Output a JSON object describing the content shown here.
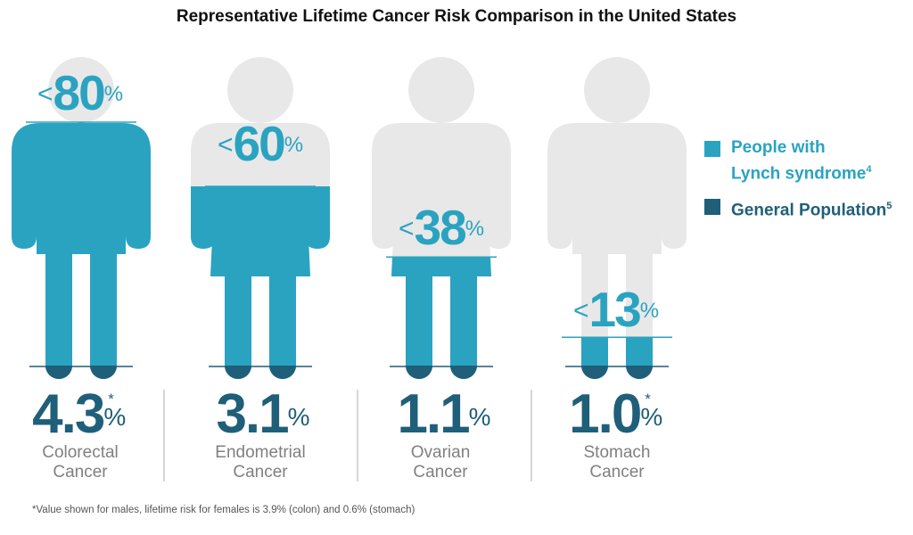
{
  "title": "Representative Lifetime Cancer Risk Comparison in the United States",
  "legend": [
    {
      "label_line1": "People with",
      "label_line2": "Lynch syndrome",
      "sup": "4",
      "color": "#2aa3c1"
    },
    {
      "label_line1": "General Population",
      "label_line2": "",
      "sup": "5",
      "color": "#1f5f79"
    }
  ],
  "colors": {
    "lynch": "#2aa3c1",
    "general": "#1f5f79",
    "figure_bg": "#e8e8e8",
    "text_gray": "#808080"
  },
  "footnote": "*Value shown for males, lifetime risk for females is 3.9% (colon) and 0.6% (stomach)",
  "chart_data": {
    "type": "bar",
    "categories": [
      "Colorectal Cancer",
      "Endometrial Cancer",
      "Ovarian Cancer",
      "Stomach Cancer"
    ],
    "series": [
      {
        "name": "People with Lynch syndrome",
        "values": [
          80,
          60,
          38,
          13
        ],
        "labels": [
          "<",
          "<",
          "<",
          "<"
        ]
      },
      {
        "name": "General Population",
        "values": [
          4.3,
          3.1,
          1.1,
          1.0
        ],
        "footnote_marker": [
          "*",
          "",
          "",
          "*"
        ]
      }
    ],
    "ylim": [
      0,
      100
    ],
    "unit": "%"
  },
  "items": [
    {
      "cat_line1": "Colorectal",
      "cat_line2": "Cancer",
      "lynch_lt": "<",
      "lynch_num": "80",
      "lynch_pct": "%",
      "pop_num": "4.3",
      "pop_pct": "%",
      "pop_star": "*"
    },
    {
      "cat_line1": "Endometrial",
      "cat_line2": "Cancer",
      "lynch_lt": "<",
      "lynch_num": "60",
      "lynch_pct": "%",
      "pop_num": "3.1",
      "pop_pct": "%",
      "pop_star": ""
    },
    {
      "cat_line1": "Ovarian",
      "cat_line2": "Cancer",
      "lynch_lt": "<",
      "lynch_num": "38",
      "lynch_pct": "%",
      "pop_num": "1.1",
      "pop_pct": "%",
      "pop_star": ""
    },
    {
      "cat_line1": "Stomach",
      "cat_line2": "Cancer",
      "lynch_lt": "<",
      "lynch_num": "13",
      "lynch_pct": "%",
      "pop_num": "1.0",
      "pop_pct": "%",
      "pop_star": "*"
    }
  ]
}
